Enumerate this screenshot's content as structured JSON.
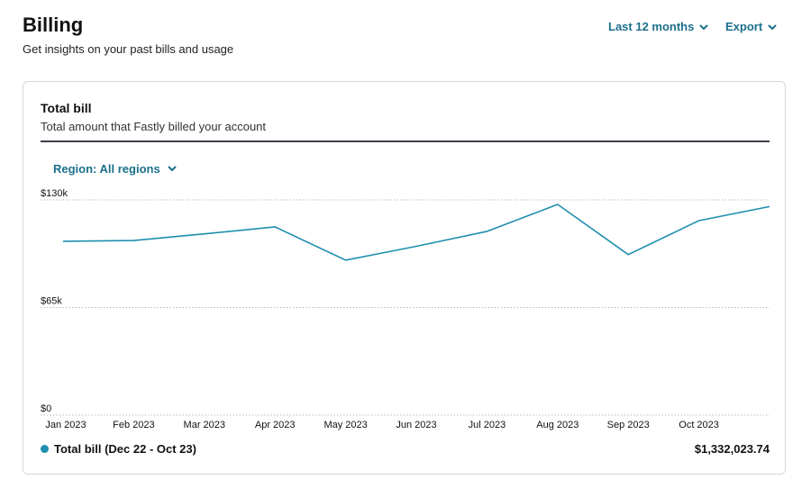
{
  "header": {
    "title": "Billing",
    "subtitle": "Get insights on your past bills and usage",
    "range": "Last 12 months",
    "export": "Export"
  },
  "card": {
    "title": "Total bill",
    "subtitle": "Total amount that Fastly billed your account",
    "region": "Region: All regions",
    "total": "$1,332,023.74"
  },
  "chart_data": {
    "type": "line",
    "categories": [
      "Jan 2023",
      "Feb 2023",
      "Mar 2023",
      "Apr 2023",
      "May 2023",
      "Jun 2023",
      "Jul 2023",
      "Aug 2023",
      "Sep 2023",
      "Oct 2023",
      null
    ],
    "series": [
      {
        "name": "Total bill (Dec 22 - Oct 23)",
        "color": "#1e8fae",
        "values": [
          105000,
          105500,
          109500,
          113700,
          93600,
          102000,
          111000,
          127300,
          97000,
          117500,
          126000
        ]
      }
    ],
    "ylim": [
      0,
      130000
    ],
    "yticks": [
      {
        "value": 0,
        "label": "$0"
      },
      {
        "value": 65000,
        "label": "$65k"
      },
      {
        "value": 130000,
        "label": "$130k"
      }
    ],
    "grid": true
  }
}
